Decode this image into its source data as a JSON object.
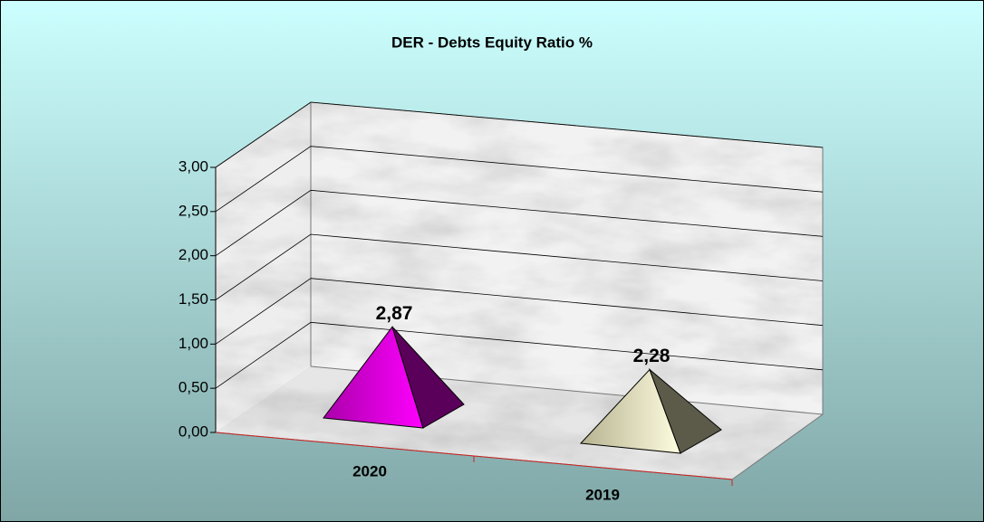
{
  "chart_data": {
    "type": "pyramid3d",
    "title": "DER - Debts Equity Ratio %",
    "categories": [
      "2020",
      "2019"
    ],
    "series": [
      {
        "name": "DER",
        "colors": [
          "#cc00cc",
          "#efedc4"
        ],
        "values": [
          2.87,
          2.28
        ],
        "value_labels": [
          "2,87",
          "2,28"
        ]
      }
    ],
    "ylim": [
      0,
      3
    ],
    "yticks": [
      {
        "value": 0,
        "label": "0,00"
      },
      {
        "value": 0.5,
        "label": "0,50"
      },
      {
        "value": 1,
        "label": "1,00"
      },
      {
        "value": 1.5,
        "label": "1,50"
      },
      {
        "value": 2,
        "label": "2,00"
      },
      {
        "value": 2.5,
        "label": "2,50"
      },
      {
        "value": 3,
        "label": "3,00"
      }
    ],
    "grid": true
  }
}
